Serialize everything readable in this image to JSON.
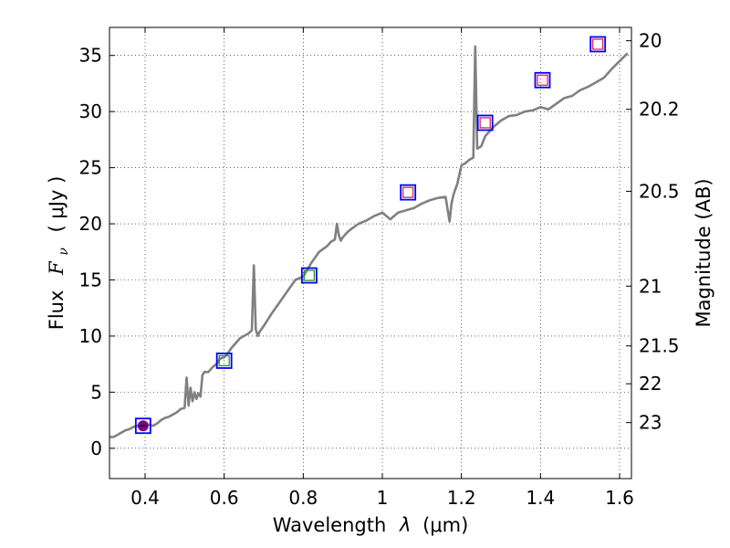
{
  "chart_data": {
    "type": "line",
    "title": "",
    "xlabel_text": "Wavelength",
    "xlabel_symbol": "λ",
    "xlabel_units": "(μm)",
    "ylabel_text": "Flux",
    "ylabel_symbol_F": "F",
    "ylabel_symbol_sub": "ν",
    "ylabel_units": "( μJy )",
    "y2label": "Magnitude (AB)",
    "xlim": [
      0.31,
      1.63
    ],
    "ylim": [
      -2.7,
      37.5
    ],
    "grid": true,
    "x_ticks": [
      {
        "value": 0.4,
        "label": "0.4"
      },
      {
        "value": 0.6,
        "label": "0.6"
      },
      {
        "value": 0.8,
        "label": "0.8"
      },
      {
        "value": 1.0,
        "label": "1"
      },
      {
        "value": 1.2,
        "label": "1.2"
      },
      {
        "value": 1.4,
        "label": "1.4"
      },
      {
        "value": 1.6,
        "label": "1.6"
      }
    ],
    "y_ticks": [
      {
        "value": 0,
        "label": "0"
      },
      {
        "value": 5,
        "label": "5"
      },
      {
        "value": 10,
        "label": "10"
      },
      {
        "value": 15,
        "label": "15"
      },
      {
        "value": 20,
        "label": "20"
      },
      {
        "value": 25,
        "label": "25"
      },
      {
        "value": 30,
        "label": "30"
      },
      {
        "value": 35,
        "label": "35"
      }
    ],
    "y2_ticks": [
      {
        "flux": 36.31,
        "label": "20"
      },
      {
        "flux": 30.2,
        "label": "20.2"
      },
      {
        "flux": 22.9,
        "label": "20.5"
      },
      {
        "flux": 14.45,
        "label": "21"
      },
      {
        "flux": 9.12,
        "label": "21.5"
      },
      {
        "flux": 5.75,
        "label": "22"
      },
      {
        "flux": 2.29,
        "label": "23"
      }
    ],
    "series": [
      {
        "name": "spectrum",
        "color": "#808080",
        "x": [
          0.31,
          0.32,
          0.33,
          0.34,
          0.35,
          0.36,
          0.37,
          0.38,
          0.39,
          0.4,
          0.41,
          0.42,
          0.43,
          0.44,
          0.45,
          0.46,
          0.47,
          0.48,
          0.49,
          0.5,
          0.505,
          0.51,
          0.515,
          0.52,
          0.525,
          0.53,
          0.535,
          0.54,
          0.545,
          0.55,
          0.56,
          0.57,
          0.58,
          0.59,
          0.6,
          0.61,
          0.62,
          0.63,
          0.64,
          0.65,
          0.66,
          0.67,
          0.675,
          0.68,
          0.685,
          0.69,
          0.7,
          0.72,
          0.74,
          0.76,
          0.78,
          0.8,
          0.82,
          0.84,
          0.86,
          0.87,
          0.88,
          0.885,
          0.89,
          0.895,
          0.9,
          0.91,
          0.92,
          0.94,
          0.96,
          0.98,
          1.0,
          1.02,
          1.04,
          1.06,
          1.08,
          1.1,
          1.12,
          1.14,
          1.16,
          1.17,
          1.175,
          1.18,
          1.19,
          1.2,
          1.21,
          1.22,
          1.23,
          1.235,
          1.24,
          1.25,
          1.26,
          1.28,
          1.3,
          1.32,
          1.34,
          1.36,
          1.38,
          1.4,
          1.42,
          1.44,
          1.46,
          1.48,
          1.5,
          1.52,
          1.54,
          1.56,
          1.58,
          1.6,
          1.62
        ],
        "values": [
          1.0,
          1.0,
          1.2,
          1.4,
          1.6,
          1.7,
          1.9,
          2.0,
          2.1,
          2.2,
          2.1,
          2.0,
          2.2,
          2.5,
          2.7,
          2.8,
          3.0,
          3.2,
          3.5,
          3.6,
          6.3,
          3.8,
          5.4,
          4.2,
          5.0,
          4.4,
          4.9,
          4.6,
          6.5,
          6.8,
          6.8,
          7.2,
          7.5,
          8.0,
          8.1,
          8.5,
          9.0,
          9.4,
          9.8,
          10.0,
          10.2,
          10.5,
          16.3,
          10.6,
          10.0,
          10.4,
          10.9,
          12.0,
          13.0,
          14.0,
          15.0,
          15.3,
          16.5,
          17.5,
          18.0,
          18.4,
          18.6,
          20.0,
          19.0,
          18.5,
          18.8,
          19.2,
          19.5,
          20.0,
          20.3,
          20.7,
          21.0,
          20.4,
          21.0,
          21.2,
          21.4,
          21.8,
          22.1,
          22.3,
          22.4,
          20.2,
          21.8,
          22.6,
          23.6,
          25.2,
          25.4,
          25.7,
          25.9,
          35.8,
          26.7,
          26.9,
          27.8,
          28.6,
          29.2,
          29.6,
          29.7,
          30.0,
          30.1,
          30.4,
          30.2,
          30.7,
          31.2,
          31.4,
          31.9,
          32.2,
          32.6,
          33.0,
          33.8,
          34.5,
          35.2
        ]
      },
      {
        "name": "photometry",
        "x": [
          0.395,
          0.6,
          0.815,
          1.065,
          1.26,
          1.405,
          1.545
        ],
        "values": [
          2.0,
          7.8,
          15.4,
          22.8,
          29.0,
          32.8,
          36.0
        ],
        "inner_colors": [
          "#7f007f",
          "#228b22",
          "#228b22",
          "#dc143c",
          "#dc143c",
          "#dc143c",
          "#dc143c"
        ],
        "outer_color": "#0000ff"
      }
    ]
  }
}
